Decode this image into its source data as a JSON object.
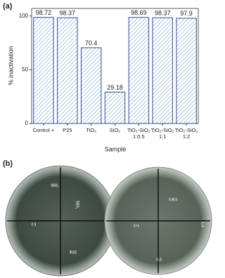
{
  "panel_labels": [
    "(a)",
    "(b)"
  ],
  "chart_data": {
    "type": "bar",
    "categories": [
      "Control +",
      "P25",
      "TiO₂",
      "SiO₂",
      "TiO₂-SiO₂\n1:0.5",
      "TiO₂-SiO₂\n1:1",
      "TiO₂-SiO₂\n1:2"
    ],
    "values": [
      98.72,
      98.37,
      70.4,
      29.18,
      98.69,
      98.37,
      97.9
    ],
    "color": "#2e4f8f",
    "ylim": [
      0,
      107
    ],
    "yticks": [
      0,
      50,
      100
    ],
    "xlabel": "Sample",
    "ylabel": "% inactivation"
  },
  "photo": {
    "left_dish": [
      "SiO₂",
      "TiO₂",
      "(-)",
      "P25"
    ],
    "right_dish": [
      "1:0.5",
      "1:1",
      "(+)",
      "1:2"
    ]
  }
}
